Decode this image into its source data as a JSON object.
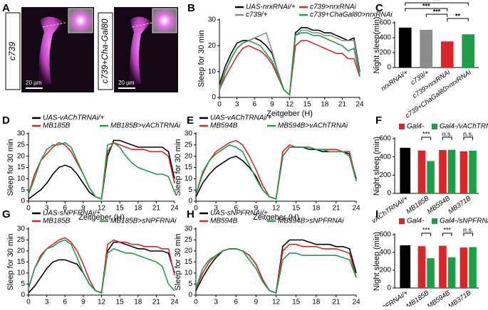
{
  "panel_a": {
    "panel": "A",
    "labels": [
      "c739",
      "c739+Cha-Gal80"
    ],
    "scale_bars": [
      "20 µm",
      "20 µm"
    ]
  },
  "chart_data": [
    {
      "type": "line",
      "panel": "B",
      "xlabel": "Zeitgeber (H)",
      "ylabel": "Sleep for 30 min",
      "x": [
        0,
        1,
        2,
        3,
        4,
        5,
        6,
        7,
        8,
        9,
        10,
        11,
        12,
        13,
        14,
        15,
        16,
        17,
        18,
        19,
        20,
        21,
        22,
        23,
        24
      ],
      "xlim": [
        0,
        24
      ],
      "xticks": [
        0,
        3,
        6,
        9,
        12,
        15,
        18,
        21,
        24
      ],
      "ylim": [
        0,
        30
      ],
      "yticks": [
        0,
        10,
        20,
        30
      ],
      "series": [
        {
          "name": "UAS-nrxRNAi/+",
          "color": "#000000",
          "values": [
            5,
            12,
            17,
            21,
            22,
            22,
            23,
            22,
            20,
            17,
            10,
            3,
            1,
            25,
            27,
            27,
            26,
            26,
            25,
            25,
            24,
            23,
            22,
            23,
            10
          ]
        },
        {
          "name": "c739/+",
          "color": "#8c8c8c",
          "values": [
            4,
            10,
            15,
            19,
            21,
            22,
            23,
            24,
            25,
            18,
            10,
            3,
            1,
            24,
            26,
            26,
            25,
            25,
            24,
            24,
            23,
            22,
            22,
            22,
            9
          ]
        },
        {
          "name": "c739>nrxRNAi",
          "color": "#d9262b",
          "values": [
            3,
            8,
            12,
            16,
            19,
            20,
            19,
            18,
            16,
            13,
            8,
            3,
            1,
            20,
            22,
            22,
            21,
            20,
            19,
            18,
            17,
            17,
            15,
            15,
            8
          ]
        },
        {
          "name": "c739+ChaGal80>nrxRNAi",
          "color": "#1f9e4a",
          "values": [
            3,
            10,
            15,
            19,
            21,
            22,
            21,
            20,
            17,
            14,
            9,
            3,
            1,
            24,
            25,
            25,
            24,
            24,
            23,
            22,
            21,
            20,
            18,
            19,
            8
          ]
        }
      ]
    },
    {
      "type": "bar",
      "panel": "C",
      "ylabel": "Night sleep(min)",
      "categories": [
        "nrxRNAi/+",
        "c739/+",
        "c739>nrxRNAi",
        "c739+ChaGal80>nrxRNAi"
      ],
      "values": [
        535,
        505,
        350,
        445
      ],
      "colors": [
        "#000000",
        "#8c8c8c",
        "#d9262b",
        "#1f9e4a"
      ],
      "ylim": [
        0,
        600
      ],
      "yticks": [
        0,
        200,
        400,
        600
      ],
      "annotations": [
        "***",
        "***",
        "***",
        "**"
      ]
    },
    {
      "type": "line",
      "panel": "D",
      "xlabel": "Zeitgeber (H)",
      "ylabel": "Sleep for 30 min",
      "x": [
        0,
        1,
        2,
        3,
        4,
        5,
        6,
        7,
        8,
        9,
        10,
        11,
        12,
        13,
        14,
        15,
        16,
        17,
        18,
        19,
        20,
        21,
        22,
        23,
        24
      ],
      "xlim": [
        0,
        24
      ],
      "xticks": [
        0,
        3,
        6,
        9,
        12,
        15,
        18,
        21,
        24
      ],
      "ylim": [
        0,
        30
      ],
      "yticks": [
        0,
        5,
        10,
        15,
        20,
        25,
        30
      ],
      "series": [
        {
          "name": "UAS-vAChTRNAi/+",
          "color": "#000000",
          "values": [
            1,
            3,
            5,
            8,
            12,
            15,
            16,
            15,
            12,
            8,
            4,
            2,
            1,
            20,
            27,
            27,
            26,
            25,
            24,
            24,
            24,
            24,
            24,
            22,
            10
          ]
        },
        {
          "name": "MB185B",
          "color": "#d9262b",
          "values": [
            3,
            12,
            18,
            21,
            24,
            26,
            25,
            22,
            17,
            12,
            6,
            2,
            1,
            22,
            26,
            25,
            24,
            23,
            23,
            23,
            22,
            22,
            22,
            20,
            8
          ]
        },
        {
          "name": "MB185B>vAChTRNAi",
          "color": "#1f9e4a",
          "values": [
            3,
            10,
            18,
            23,
            25,
            25,
            26,
            24,
            18,
            12,
            6,
            2,
            1,
            25,
            26,
            24,
            20,
            17,
            15,
            14,
            13,
            12,
            12,
            11,
            4
          ]
        }
      ]
    },
    {
      "type": "line",
      "panel": "E",
      "xlabel": "Zeitgeber (H)",
      "ylabel": "Sleep for 30 min",
      "x": [
        0,
        1,
        2,
        3,
        4,
        5,
        6,
        7,
        8,
        9,
        10,
        11,
        12,
        13,
        14,
        15,
        16,
        17,
        18,
        19,
        20,
        21,
        22,
        23,
        24
      ],
      "xlim": [
        0,
        24
      ],
      "xticks": [
        0,
        3,
        6,
        9,
        12,
        15,
        18,
        21,
        24
      ],
      "ylim": [
        0,
        30
      ],
      "yticks": [
        0,
        5,
        10,
        15,
        20,
        25,
        30
      ],
      "series": [
        {
          "name": "UAS-vAChTRNAi/+",
          "color": "#000000",
          "values": [
            2,
            8,
            12,
            15,
            17,
            19,
            20,
            18,
            15,
            11,
            5,
            2,
            1,
            20,
            24,
            24,
            24,
            23,
            23,
            22,
            22,
            22,
            22,
            21,
            10
          ]
        },
        {
          "name": "MB594B",
          "color": "#d9262b",
          "values": [
            3,
            12,
            18,
            22,
            24,
            26,
            27,
            25,
            20,
            14,
            7,
            2,
            1,
            22,
            25,
            24,
            24,
            24,
            23,
            23,
            23,
            23,
            22,
            22,
            9
          ]
        },
        {
          "name": "MB594B>vAChTRNAi",
          "color": "#1f9e4a",
          "values": [
            3,
            13,
            18,
            21,
            23,
            25,
            24,
            22,
            16,
            10,
            5,
            2,
            1,
            20,
            24,
            24,
            24,
            24,
            23,
            23,
            22,
            22,
            22,
            20,
            9
          ]
        }
      ]
    },
    {
      "type": "groupbar",
      "panel": "F",
      "ylabel": "Night sleep (min)",
      "categories": [
        "vAChTRNAi/+",
        "MB185B",
        "MB594B",
        "MB371B"
      ],
      "ylim": [
        0,
        600
      ],
      "yticks": [
        0,
        200,
        400,
        600
      ],
      "series": [
        {
          "color": "#000000",
          "values": [
            500,
            null,
            null,
            null
          ]
        },
        {
          "name": "Gal4-",
          "color": "#d9262b",
          "values": [
            null,
            470,
            475,
            462
          ]
        },
        {
          "name": "Gal4-/vAChTRNAi",
          "color": "#1f9e4a",
          "values": [
            null,
            355,
            478,
            468
          ]
        }
      ],
      "annotations": [
        "***",
        "n.s.",
        "n.s."
      ]
    },
    {
      "type": "line",
      "panel": "G",
      "xlabel": "Zeitgeber (H)",
      "ylabel": "Sleep for 30 min",
      "x": [
        0,
        1,
        2,
        3,
        4,
        5,
        6,
        7,
        8,
        9,
        10,
        11,
        12,
        13,
        14,
        15,
        16,
        17,
        18,
        19,
        20,
        21,
        22,
        23,
        24
      ],
      "xlim": [
        0,
        24
      ],
      "xticks": [
        0,
        3,
        6,
        9,
        12,
        15,
        18,
        21,
        24
      ],
      "ylim": [
        0,
        30
      ],
      "yticks": [
        0,
        5,
        10,
        15,
        20,
        25,
        30
      ],
      "series": [
        {
          "name": "UAS-sNPFRNAi/+",
          "color": "#000000",
          "values": [
            1,
            4,
            8,
            12,
            15,
            16,
            16,
            15,
            14,
            10,
            5,
            2,
            1,
            20,
            24,
            24,
            23,
            22,
            21,
            21,
            20,
            20,
            20,
            19,
            10
          ]
        },
        {
          "name": "MB185B",
          "color": "#d9262b",
          "values": [
            3,
            12,
            18,
            21,
            23,
            25,
            26,
            24,
            20,
            14,
            7,
            2,
            1,
            23,
            25,
            24,
            24,
            23,
            23,
            22,
            22,
            22,
            21,
            21,
            9
          ]
        },
        {
          "name": "MB185B>sNPFRNAi",
          "color": "#1f9e4a",
          "values": [
            3,
            12,
            17,
            21,
            22,
            24,
            25,
            23,
            17,
            10,
            5,
            2,
            1,
            19,
            21,
            20,
            19,
            19,
            18,
            17,
            16,
            15,
            13,
            5,
            2
          ]
        }
      ]
    },
    {
      "type": "line",
      "panel": "H",
      "xlabel": "Zeitgeber (H)",
      "ylabel": "Sleep for 30 min",
      "x": [
        0,
        1,
        2,
        3,
        4,
        5,
        6,
        7,
        8,
        9,
        10,
        11,
        12,
        13,
        14,
        15,
        16,
        17,
        18,
        19,
        20,
        21,
        22,
        23,
        24
      ],
      "xlim": [
        0,
        24
      ],
      "xticks": [
        0,
        3,
        6,
        9,
        12,
        15,
        18,
        21,
        24
      ],
      "ylim": [
        0,
        30
      ],
      "yticks": [
        0,
        5,
        10,
        15,
        20,
        25,
        30
      ],
      "series": [
        {
          "name": "UAS-sNPFRNAi/+",
          "color": "#000000",
          "values": [
            2,
            8,
            13,
            17,
            20,
            21,
            21,
            20,
            18,
            14,
            7,
            2,
            1,
            22,
            25,
            25,
            25,
            24,
            23,
            23,
            23,
            22,
            22,
            21,
            10
          ]
        },
        {
          "name": "MB594B",
          "color": "#d9262b",
          "values": [
            3,
            10,
            15,
            18,
            20,
            21,
            21,
            20,
            18,
            14,
            7,
            2,
            1,
            20,
            23,
            23,
            22,
            22,
            22,
            21,
            21,
            21,
            20,
            19,
            8
          ]
        },
        {
          "name": "MB594B>sNPFRNAi",
          "color": "#1f9e4a",
          "values": [
            3,
            12,
            16,
            18,
            20,
            21,
            21,
            20,
            16,
            12,
            6,
            2,
            1,
            16,
            19,
            19,
            18,
            18,
            18,
            18,
            18,
            18,
            17,
            16,
            8
          ]
        }
      ]
    },
    {
      "type": "groupbar",
      "panel": "I",
      "ylabel": "Night sleep (min)",
      "categories": [
        "sNPFRNAi/+",
        "MB185B",
        "MB594B",
        "MB371B"
      ],
      "ylim": [
        0,
        600
      ],
      "yticks": [
        0,
        200,
        400,
        600
      ],
      "series": [
        {
          "color": "#000000",
          "values": [
            480,
            null,
            null,
            null
          ]
        },
        {
          "name": "Gal4-",
          "color": "#d9262b",
          "values": [
            null,
            470,
            475,
            455
          ]
        },
        {
          "name": "Gal4-/sNPFRNAi",
          "color": "#1f9e4a",
          "values": [
            null,
            335,
            345,
            460
          ]
        }
      ],
      "annotations": [
        "***",
        "***",
        "n.s."
      ]
    }
  ]
}
